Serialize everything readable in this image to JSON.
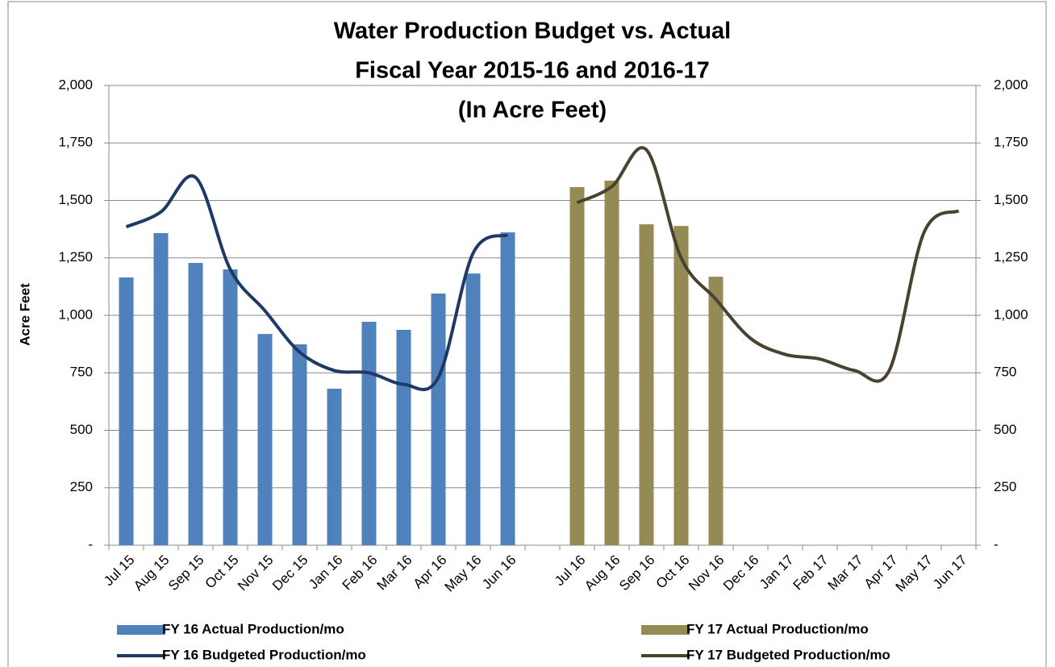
{
  "chart_data": {
    "type": "bar",
    "title": "Water Production Budget vs. Actual",
    "subtitle": [
      "Fiscal Year 2015-16 and 2016-17",
      "(In Acre Feet)"
    ],
    "y_label": "Acre Feet",
    "categories": [
      "Jul 15",
      "Aug 15",
      "Sep 15",
      "Oct 15",
      "Nov 15",
      "Dec 15",
      "Jan 16",
      "Feb 16",
      "Mar 16",
      "Apr 16",
      "May 16",
      "Jun 16",
      null,
      "Jul 16",
      "Aug 16",
      "Sep 16",
      "Oct 16",
      "Nov 16",
      "Dec 16",
      "Jan 17",
      "Feb 17",
      "Mar 17",
      "Apr 17",
      "May 17",
      "Jun 17"
    ],
    "series": [
      {
        "name": "FY 16 Actual Production/mo",
        "type": "bar",
        "color": "#4f81bd",
        "values": [
          1165,
          1358,
          1228,
          1200,
          919,
          874,
          681,
          972,
          937,
          1095,
          1182,
          1361,
          null,
          null,
          null,
          null,
          null,
          null,
          null,
          null,
          null,
          null,
          null,
          null,
          null
        ]
      },
      {
        "name": "FY 17 Actual Production/mo",
        "type": "bar",
        "color": "#948a54",
        "values": [
          null,
          null,
          null,
          null,
          null,
          null,
          null,
          null,
          null,
          null,
          null,
          null,
          null,
          1558,
          1586,
          1396,
          1389,
          1168,
          null,
          null,
          null,
          null,
          null,
          null,
          null
        ]
      },
      {
        "name": "FY 16 Budgeted Production/mo",
        "type": "line",
        "color": "#1f3864",
        "axis": "y2",
        "values": [
          1385,
          1450,
          1600,
          1200,
          1020,
          840,
          760,
          750,
          700,
          730,
          1270,
          1350,
          null,
          null,
          null,
          null,
          null,
          null,
          null,
          null,
          null,
          null,
          null,
          null,
          null
        ]
      },
      {
        "name": "FY 17 Budgeted Production/mo",
        "type": "line",
        "color": "#4a4230",
        "axis": "y2",
        "values": [
          null,
          null,
          null,
          null,
          null,
          null,
          null,
          null,
          null,
          null,
          null,
          null,
          null,
          1490,
          1560,
          1720,
          1250,
          1070,
          900,
          830,
          810,
          760,
          760,
          1360,
          1455
        ]
      }
    ],
    "ylim": [
      0,
      2000
    ],
    "yticks": [
      {
        "value": 0,
        "label": "-"
      },
      250,
      500,
      750,
      {
        "value": 1000,
        "label": "1,000"
      },
      {
        "value": 1250,
        "label": "1,250"
      },
      {
        "value": 1500,
        "label": "1,500"
      },
      {
        "value": 1750,
        "label": "1,750"
      },
      {
        "value": 2000,
        "label": "2,000"
      }
    ],
    "y2lim": [
      0,
      2000
    ],
    "y2ticks": [
      {
        "value": 0,
        "label": "-"
      },
      250,
      500,
      750,
      {
        "value": 1000,
        "label": "1,000"
      },
      {
        "value": 1250,
        "label": "1,250"
      },
      {
        "value": 1500,
        "label": "1,500"
      },
      {
        "value": 1750,
        "label": "1,750"
      },
      {
        "value": 2000,
        "label": "2,000"
      }
    ],
    "grid": true,
    "legend": "bottom"
  }
}
